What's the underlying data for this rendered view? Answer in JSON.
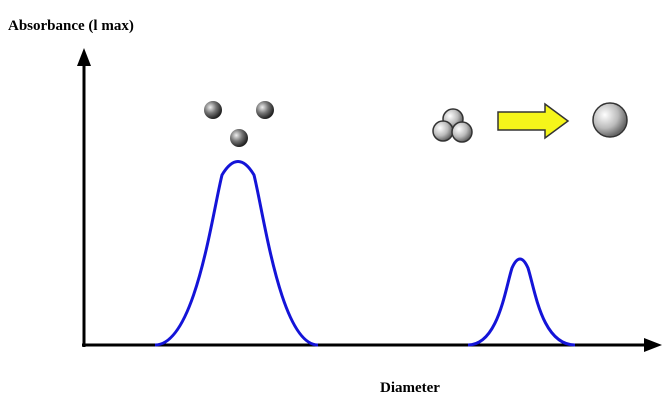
{
  "y_axis_label": "Absorbance (l max)",
  "x_axis_label": "Diameter"
}
